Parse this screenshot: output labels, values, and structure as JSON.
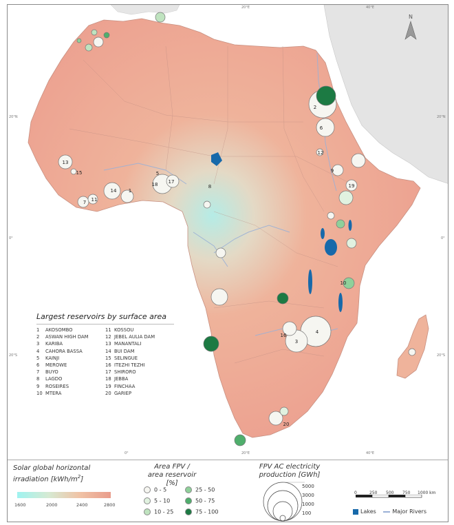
{
  "graticule": {
    "top": [
      "20°E",
      "40°E"
    ],
    "bottom": [
      "0°",
      "20°E",
      "40°E"
    ],
    "left": [
      "20°N",
      "0°",
      "20°S"
    ],
    "right": [
      "20°N",
      "0°",
      "20°S"
    ]
  },
  "north_label": "N",
  "reservoir_list": {
    "title": "Largest reservoirs by surface area",
    "items": [
      {
        "num": "1",
        "name": "AKOSOMBO"
      },
      {
        "num": "2",
        "name": "ASWAN HIGH DAM"
      },
      {
        "num": "3",
        "name": "KARIBA"
      },
      {
        "num": "4",
        "name": "CAHORA BASSA"
      },
      {
        "num": "5",
        "name": "KAINJI"
      },
      {
        "num": "6",
        "name": "MEROWE"
      },
      {
        "num": "7",
        "name": "BUYO"
      },
      {
        "num": "8",
        "name": "LAGDO"
      },
      {
        "num": "9",
        "name": "ROSEIRES"
      },
      {
        "num": "10",
        "name": "MTERA"
      },
      {
        "num": "11",
        "name": "KOSSOU"
      },
      {
        "num": "12",
        "name": "JEBEL AULIA DAM"
      },
      {
        "num": "13",
        "name": "MANANTALI"
      },
      {
        "num": "14",
        "name": "BUI DAM"
      },
      {
        "num": "15",
        "name": "SELINGUE"
      },
      {
        "num": "16",
        "name": "ITEZHI TEZHI"
      },
      {
        "num": "17",
        "name": "SHIRORO"
      },
      {
        "num": "18",
        "name": "JEBBA"
      },
      {
        "num": "19",
        "name": "FINCHAA"
      },
      {
        "num": "20",
        "name": "GARIEP"
      }
    ]
  },
  "legend": {
    "ghi_title_1": "Solar global horizontal",
    "ghi_title_2": "irradiation [kWh/m",
    "ghi_title_sup": "2",
    "ghi_title_end": "]",
    "ghi_ticks": [
      "1600",
      "2000",
      "2400",
      "2800"
    ],
    "area_title_1": "Area FPV /",
    "area_title_2": "area reservoir [%]",
    "area_classes": [
      {
        "label": "0 - 5",
        "color": "#f6f6f1"
      },
      {
        "label": "5 - 10",
        "color": "#e1f2e0"
      },
      {
        "label": "10 - 25",
        "color": "#bfe3bf"
      },
      {
        "label": "25 - 50",
        "color": "#8fd09a"
      },
      {
        "label": "50 - 75",
        "color": "#4fae6c"
      },
      {
        "label": "75 - 100",
        "color": "#1c7a43"
      }
    ],
    "prod_title_1": "FPV AC electricity",
    "prod_title_2": "production [GWh]",
    "prod_values": [
      "5000",
      "3000",
      "1000",
      "100"
    ],
    "scale_labels": [
      "0",
      "250",
      "500",
      "750",
      "1000 km"
    ],
    "lakes_label": "Lakes",
    "rivers_label": "Major Rivers"
  },
  "colors": {
    "ocean": "#ffffff",
    "land_hot": "#eea08e",
    "land_mid": "#f0c3a6",
    "land_cool": "#a8efec",
    "lake": "#1769aa",
    "river": "#9ab0d6"
  }
}
